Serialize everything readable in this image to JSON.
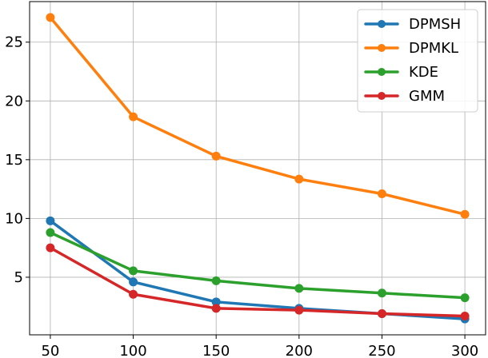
{
  "chart_data": {
    "type": "line",
    "x": [
      50,
      100,
      150,
      200,
      250,
      300
    ],
    "series": [
      {
        "name": "DPMSH",
        "color": "#1f77b4",
        "values": [
          9.8,
          4.6,
          2.9,
          2.35,
          1.9,
          1.45
        ]
      },
      {
        "name": "DPMKL",
        "color": "#ff7f0e",
        "values": [
          27.1,
          18.65,
          15.3,
          13.35,
          12.1,
          10.35
        ]
      },
      {
        "name": "KDE",
        "color": "#2ca02c",
        "values": [
          8.8,
          5.55,
          4.7,
          4.05,
          3.65,
          3.25
        ]
      },
      {
        "name": "GMM",
        "color": "#d62728",
        "values": [
          7.5,
          3.55,
          2.35,
          2.2,
          1.9,
          1.7
        ]
      }
    ],
    "xticks": [
      50,
      100,
      150,
      200,
      250,
      300
    ],
    "yticks": [
      5,
      10,
      15,
      20,
      25
    ],
    "xlim": [
      37.5,
      312.5
    ],
    "ylim": [
      0.1,
      28.45
    ],
    "grid": true,
    "legend_position": "top-right",
    "title": "",
    "xlabel": "",
    "ylabel": ""
  }
}
